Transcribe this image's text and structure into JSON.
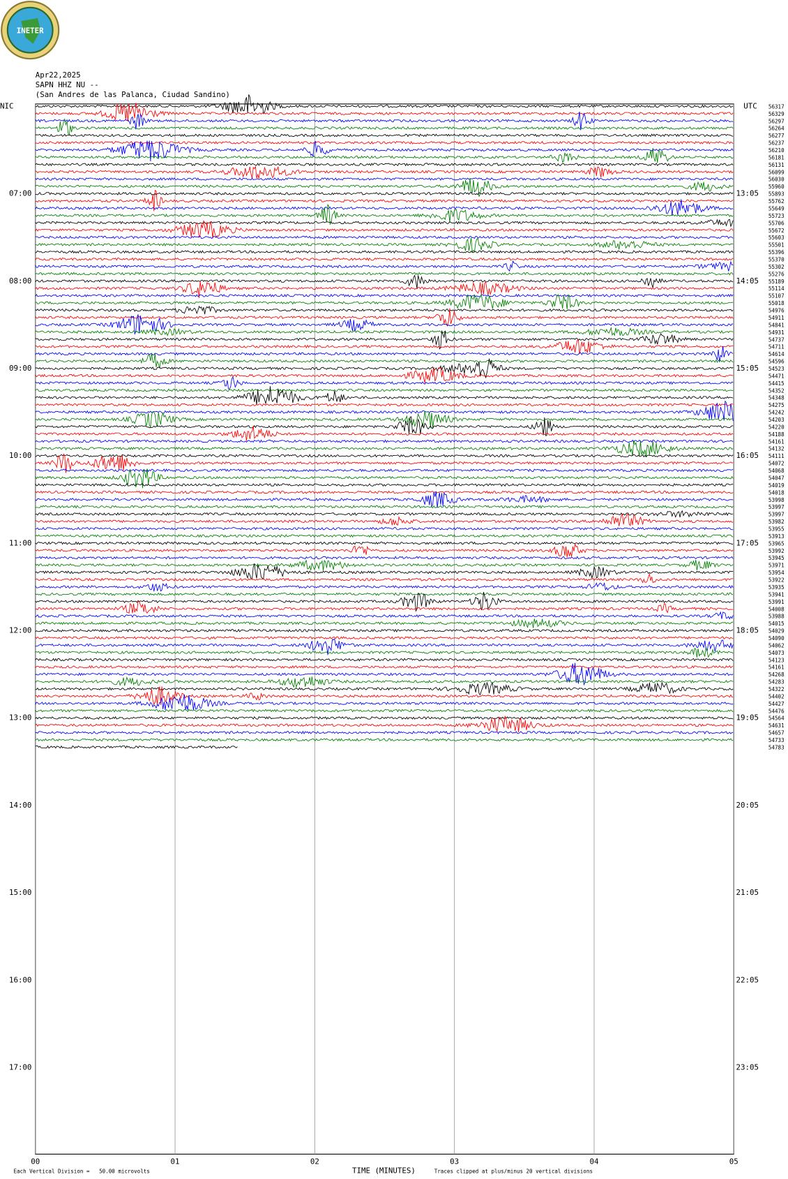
{
  "logo": "INETER",
  "header": {
    "date": "Apr22,2025",
    "station": "SAPN HHZ NU --",
    "location": "(San Andres de las Palanca, Ciudad Sandino)"
  },
  "left_label": "NIC",
  "right_label": "UTC",
  "left_times": [
    "07:00",
    "08:00",
    "09:00",
    "10:00",
    "11:00",
    "12:00",
    "13:00",
    "14:00",
    "15:00",
    "16:00",
    "17:00"
  ],
  "right_times": [
    "13:05",
    "14:05",
    "15:05",
    "16:05",
    "17:05",
    "18:05",
    "19:05",
    "20:05",
    "21:05",
    "22:05",
    "23:05"
  ],
  "trace_labels": [
    "56317",
    "56329",
    "56297",
    "56264",
    "56277",
    "56237",
    "56210",
    "56181",
    "56131",
    "56099",
    "56030",
    "55960",
    "55893",
    "55762",
    "55649",
    "55723",
    "55706",
    "55672",
    "55603",
    "55501",
    "55396",
    "55370",
    "55302",
    "55276",
    "55189",
    "55114",
    "55107",
    "55018",
    "54976",
    "54911",
    "54841",
    "54931",
    "54737",
    "54711",
    "54614",
    "54596",
    "54523",
    "54471",
    "54415",
    "54352",
    "54348",
    "54275",
    "54242",
    "54203",
    "54220",
    "54188",
    "54161",
    "54132",
    "54111",
    "54072",
    "54068",
    "54047",
    "54019",
    "54018",
    "53998",
    "53997",
    "53997",
    "53982",
    "53955",
    "53913",
    "53965",
    "53992",
    "53945",
    "53971",
    "53954",
    "53922",
    "53935",
    "53941",
    "53991",
    "54008",
    "53988",
    "54015",
    "54029",
    "54090",
    "54062",
    "54073",
    "54123",
    "54161",
    "54268",
    "54283",
    "54322",
    "54402",
    "54427",
    "54476",
    "54564",
    "54631",
    "54657",
    "54733",
    "54783"
  ],
  "trace_colors": [
    "#000000",
    "#ff0000",
    "#0000ff",
    "#008000"
  ],
  "x_ticks": [
    "00",
    "01",
    "02",
    "03",
    "04",
    "05"
  ],
  "x_axis_label": "TIME (MINUTES)",
  "footer_scale": "Each Vertical Division =   50.00 microvolts",
  "footer_clip": "Traces clipped at plus/minus 20 vertical divisions"
}
